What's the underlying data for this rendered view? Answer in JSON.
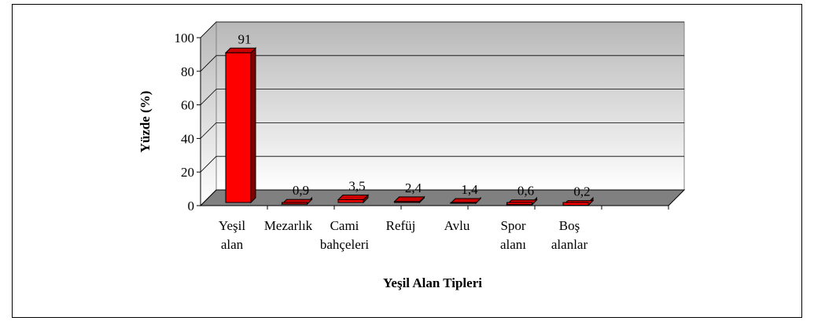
{
  "chart_data": {
    "type": "bar3d",
    "y_label": "Yüzde (%)",
    "x_label": "Yeşil Alan Tipleri",
    "categories": [
      "Yeşil alan",
      "Mezarlık",
      "Cami bahçeleri",
      "Refüj",
      "Avlu",
      "Spor alanı",
      "Boş alanlar"
    ],
    "values": [
      91,
      0.9,
      3.5,
      2.4,
      1.4,
      0.6,
      0.2
    ],
    "value_labels": [
      "91",
      "0,9",
      "3,5",
      "2,4",
      "1,4",
      "0,6",
      "0,2"
    ],
    "color": "#ff0000",
    "ylim": [
      0,
      100
    ],
    "yticks": [
      0,
      20,
      40,
      60,
      80,
      100
    ],
    "grid": true
  }
}
